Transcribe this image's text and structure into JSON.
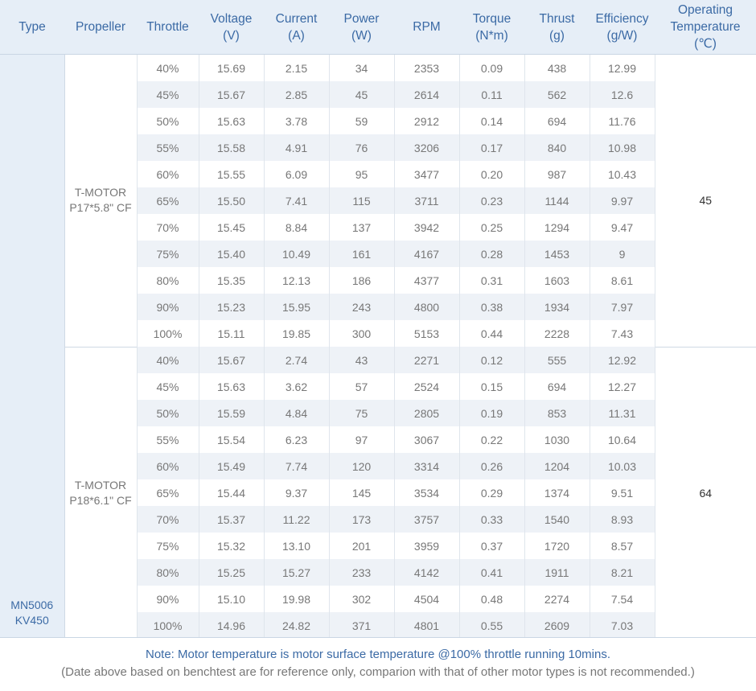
{
  "headers": {
    "type": "Type",
    "propeller": "Propeller",
    "throttle": "Throttle",
    "voltage": [
      "Voltage",
      "(V)"
    ],
    "current": [
      "Current",
      "(A)"
    ],
    "power": [
      "Power",
      "(W)"
    ],
    "rpm": "RPM",
    "torque": [
      "Torque",
      "(N*m)"
    ],
    "thrust": [
      "Thrust",
      "(g)"
    ],
    "efficiency": [
      "Efficiency",
      "(g/W)"
    ],
    "temperature": [
      "Operating",
      "Temperature",
      "(℃)"
    ]
  },
  "type": [
    "MN5006",
    "KV450"
  ],
  "groups": [
    {
      "propeller": [
        "T-MOTOR",
        "P17*5.8\" CF"
      ],
      "temperature": "45",
      "rows": [
        [
          "40%",
          "15.69",
          "2.15",
          "34",
          "2353",
          "0.09",
          "438",
          "12.99"
        ],
        [
          "45%",
          "15.67",
          "2.85",
          "45",
          "2614",
          "0.11",
          "562",
          "12.6"
        ],
        [
          "50%",
          "15.63",
          "3.78",
          "59",
          "2912",
          "0.14",
          "694",
          "11.76"
        ],
        [
          "55%",
          "15.58",
          "4.91",
          "76",
          "3206",
          "0.17",
          "840",
          "10.98"
        ],
        [
          "60%",
          "15.55",
          "6.09",
          "95",
          "3477",
          "0.20",
          "987",
          "10.43"
        ],
        [
          "65%",
          "15.50",
          "7.41",
          "115",
          "3711",
          "0.23",
          "1144",
          "9.97"
        ],
        [
          "70%",
          "15.45",
          "8.84",
          "137",
          "3942",
          "0.25",
          "1294",
          "9.47"
        ],
        [
          "75%",
          "15.40",
          "10.49",
          "161",
          "4167",
          "0.28",
          "1453",
          "9"
        ],
        [
          "80%",
          "15.35",
          "12.13",
          "186",
          "4377",
          "0.31",
          "1603",
          "8.61"
        ],
        [
          "90%",
          "15.23",
          "15.95",
          "243",
          "4800",
          "0.38",
          "1934",
          "7.97"
        ],
        [
          "100%",
          "15.11",
          "19.85",
          "300",
          "5153",
          "0.44",
          "2228",
          "7.43"
        ]
      ]
    },
    {
      "propeller": [
        "T-MOTOR",
        "P18*6.1\" CF"
      ],
      "temperature": "64",
      "rows": [
        [
          "40%",
          "15.67",
          "2.74",
          "43",
          "2271",
          "0.12",
          "555",
          "12.92"
        ],
        [
          "45%",
          "15.63",
          "3.62",
          "57",
          "2524",
          "0.15",
          "694",
          "12.27"
        ],
        [
          "50%",
          "15.59",
          "4.84",
          "75",
          "2805",
          "0.19",
          "853",
          "11.31"
        ],
        [
          "55%",
          "15.54",
          "6.23",
          "97",
          "3067",
          "0.22",
          "1030",
          "10.64"
        ],
        [
          "60%",
          "15.49",
          "7.74",
          "120",
          "3314",
          "0.26",
          "1204",
          "10.03"
        ],
        [
          "65%",
          "15.44",
          "9.37",
          "145",
          "3534",
          "0.29",
          "1374",
          "9.51"
        ],
        [
          "70%",
          "15.37",
          "11.22",
          "173",
          "3757",
          "0.33",
          "1540",
          "8.93"
        ],
        [
          "75%",
          "15.32",
          "13.10",
          "201",
          "3959",
          "0.37",
          "1720",
          "8.57"
        ],
        [
          "80%",
          "15.25",
          "15.27",
          "233",
          "4142",
          "0.41",
          "1911",
          "8.21"
        ],
        [
          "90%",
          "15.10",
          "19.98",
          "302",
          "4504",
          "0.48",
          "2274",
          "7.54"
        ],
        [
          "100%",
          "14.96",
          "24.82",
          "371",
          "4801",
          "0.55",
          "2609",
          "7.03"
        ]
      ]
    }
  ],
  "note": {
    "line1": "Note: Motor temperature is motor surface temperature @100% throttle running 10mins.",
    "line2": "(Date above based on benchtest are for reference only, comparion with that of other motor types is not recommended.)"
  }
}
